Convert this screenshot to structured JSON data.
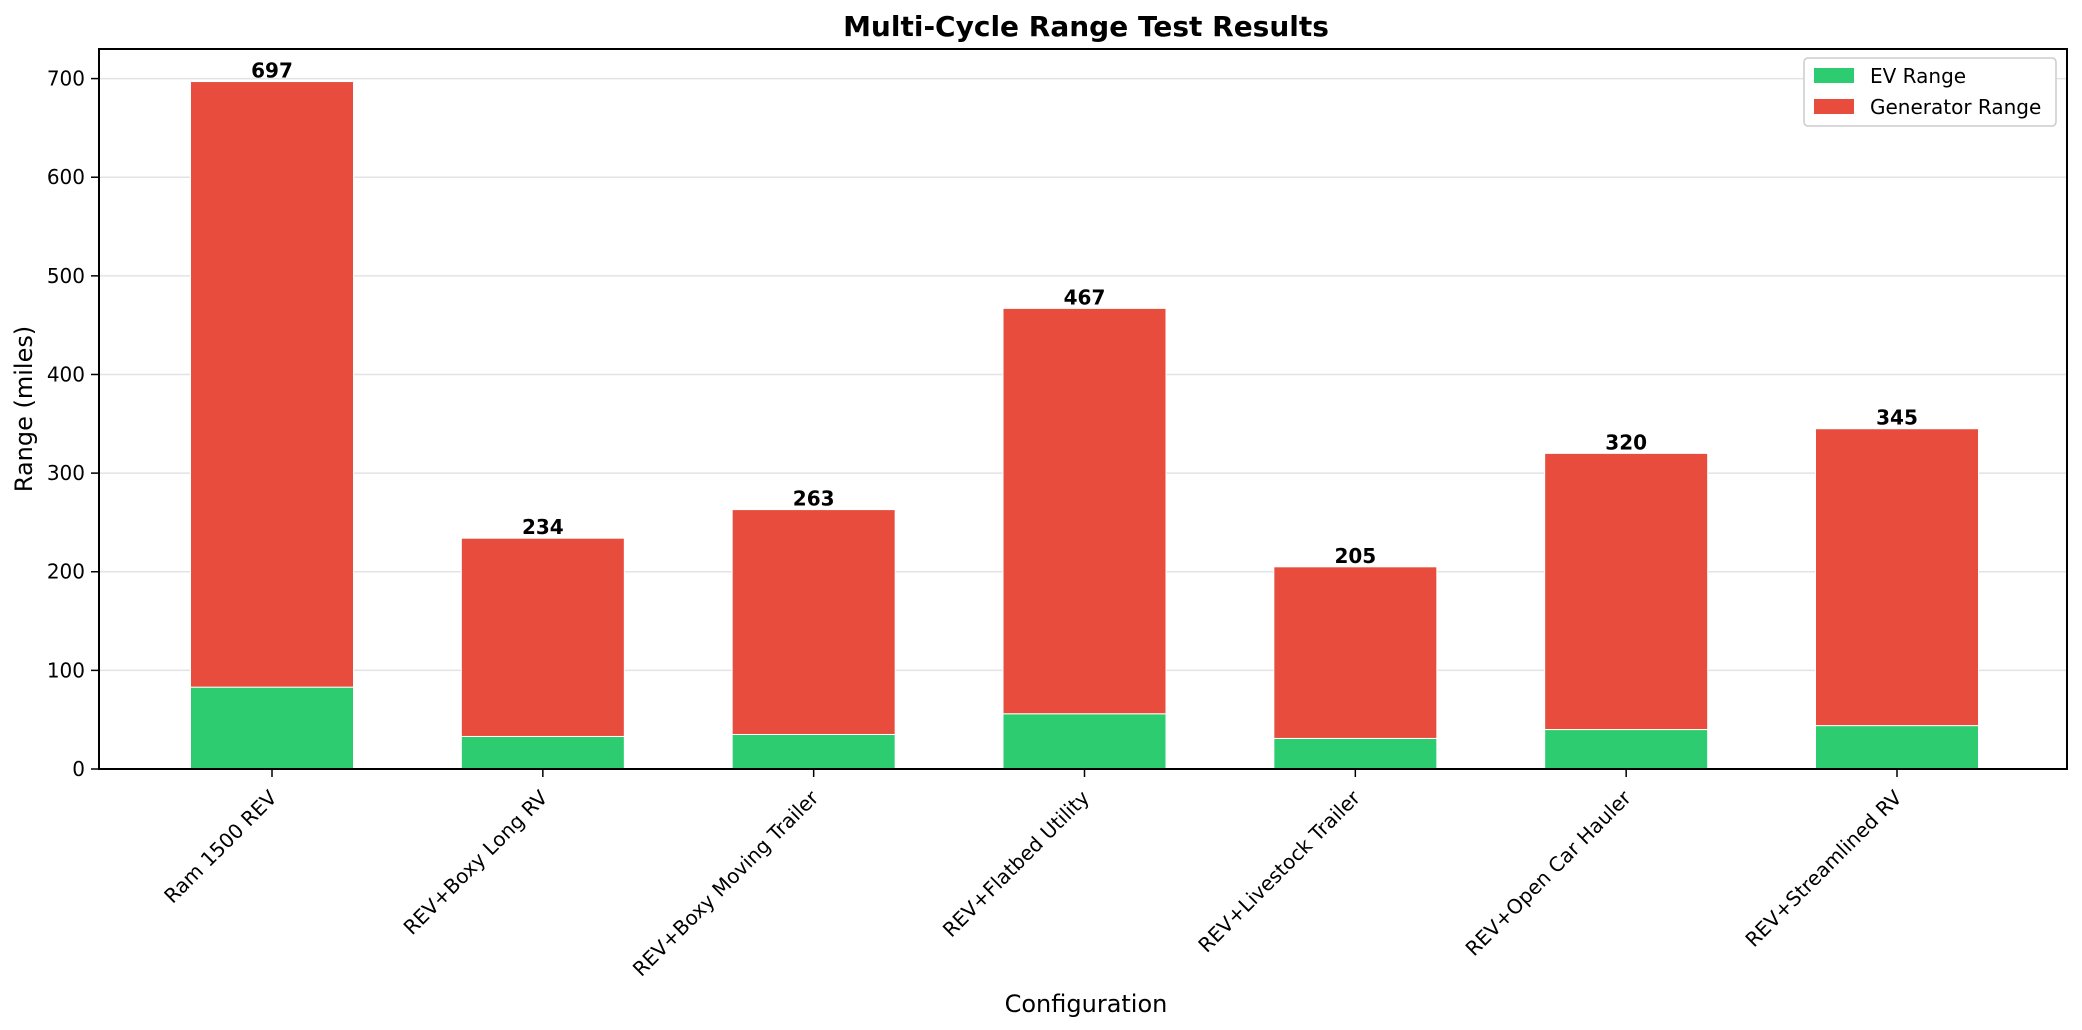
{
  "chart_data": {
    "type": "bar",
    "stacked": true,
    "title": "Multi-Cycle Range Test Results",
    "xlabel": "Configuration",
    "ylabel": "Range (miles)",
    "ylim": [
      0,
      730
    ],
    "yticks": [
      0,
      100,
      200,
      300,
      400,
      500,
      600,
      700
    ],
    "grid": "horizontal",
    "legend_position": "top-right",
    "categories": [
      "Ram 1500 REV",
      "REV+Boxy Long RV",
      "REV+Boxy Moving Trailer",
      "REV+Flatbed Utility",
      "REV+Livestock Trailer",
      "REV+Open Car Hauler",
      "REV+Streamlined RV"
    ],
    "series": [
      {
        "name": "EV Range",
        "color": "#2ecc71",
        "values": [
          83,
          33,
          35,
          56,
          31,
          40,
          44
        ]
      },
      {
        "name": "Generator Range",
        "color": "#e74c3c",
        "values": [
          614,
          201,
          228,
          411,
          174,
          280,
          301
        ]
      }
    ],
    "totals": [
      697,
      234,
      263,
      467,
      205,
      320,
      345
    ]
  }
}
